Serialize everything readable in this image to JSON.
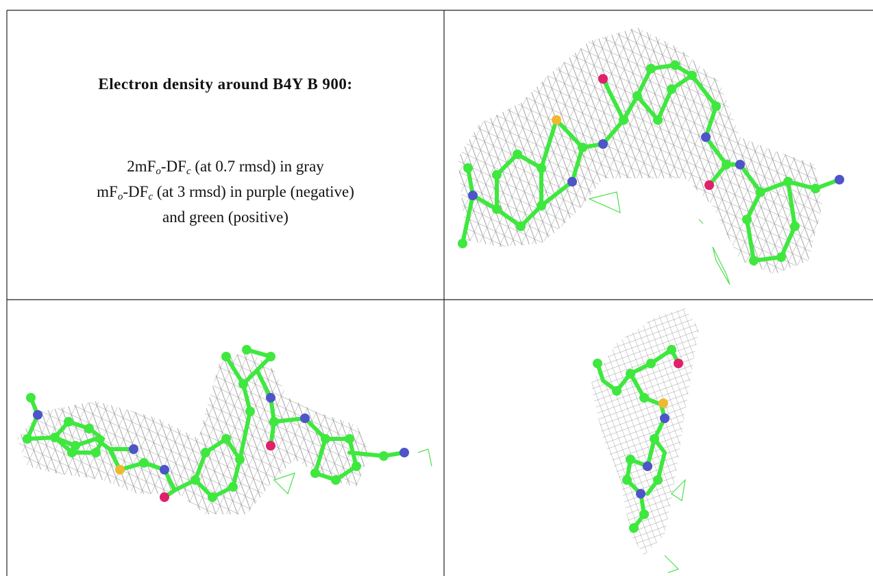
{
  "caption": {
    "title": "Electron density around B4Y B 900:",
    "lines": [
      [
        "2mF",
        "o",
        "-DF",
        "c",
        " (at 0.7 rmsd) in gray"
      ],
      [
        "mF",
        "o",
        "-DF",
        "c",
        " (at 3 rmsd) in purple (negative)"
      ],
      [
        "and green (positive)"
      ]
    ]
  }
}
